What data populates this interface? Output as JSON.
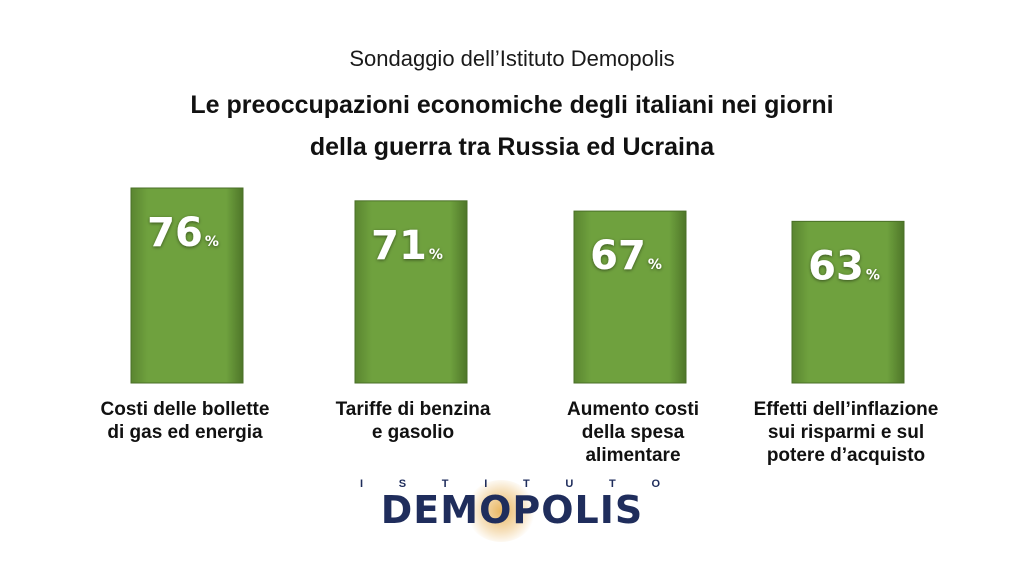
{
  "header": {
    "subtitle": "Sondaggio dell’Istituto Demopolis",
    "title_line1": "Le preoccupazioni economiche degli italiani nei giorni",
    "title_line2": "della guerra tra Russia ed Ucraina"
  },
  "chart_data": {
    "type": "bar",
    "categories": [
      "Costi delle bollette di gas ed energia",
      "Tariffe di benzina e gasolio",
      "Aumento costi della spesa alimentare",
      "Effetti dell’inflazione sui risparmi e sul potere d’acquisto"
    ],
    "values": [
      76,
      71,
      67,
      63
    ],
    "unit": "%",
    "bar_color": "#6b9a3a",
    "value_color": "#ffffff",
    "grid": false,
    "axes_visible": false
  },
  "labels": {
    "cat0_line1": "Costi delle bollette",
    "cat0_line2": "di gas ed energia",
    "cat1_line1": "Tariffe di benzina",
    "cat1_line2": "e gasolio",
    "cat2_line1": "Aumento costi",
    "cat2_line2": "della spesa",
    "cat2_line3": "alimentare",
    "cat3_line1": "Effetti dell’inflazione",
    "cat3_line2": "sui risparmi e sul",
    "cat3_line3": "potere d’acquisto"
  },
  "logo": {
    "top_letters": [
      "I",
      "S",
      "T",
      "I",
      "T",
      "U",
      "T",
      "O"
    ],
    "wordmark": "DEMOPOLIS",
    "color": "#1f2d5c",
    "accent": "#e6aa46"
  }
}
